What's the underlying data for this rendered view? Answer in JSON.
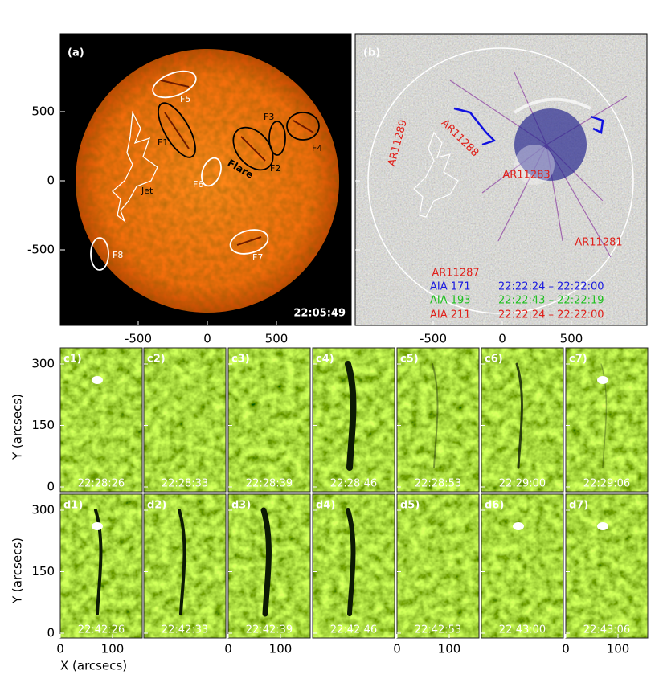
{
  "panel_a": {
    "label": "(a)",
    "time": "22:05:49",
    "features": [
      "F1",
      "F2",
      "F3",
      "F4",
      "F5",
      "F6",
      "F7",
      "F8"
    ],
    "flare": "Flare",
    "jet": "Jet"
  },
  "panel_b": {
    "label": "(b)",
    "regions": [
      "AR11289",
      "AR11288",
      "AR11283",
      "AR11281",
      "AR11287"
    ],
    "legend": [
      {
        "channel": "AIA 171",
        "times": "22:22:24 – 22:22:00"
      },
      {
        "channel": "AIA 193",
        "times": "22:22:43 – 22:22:19"
      },
      {
        "channel": "AIA 211",
        "times": "22:22:24 – 22:22:00"
      }
    ]
  },
  "top_axes": {
    "yticks": [
      500,
      0,
      -500
    ],
    "xticks": [
      -500,
      0,
      500
    ]
  },
  "rows": [
    {
      "labels": [
        "c1)",
        "c2)",
        "c3)",
        "c4)",
        "c5)",
        "c6)",
        "c7)"
      ],
      "times": [
        "22:28:26",
        "22:28:33",
        "22:28:39",
        "22:28:46",
        "22:28:53",
        "22:29:00",
        "22:29:06"
      ]
    },
    {
      "labels": [
        "d1)",
        "d2)",
        "d3)",
        "d4)",
        "d5)",
        "d6)",
        "d7)"
      ],
      "times": [
        "22:42:26",
        "22:42:33",
        "22:42:39",
        "22:42:46",
        "22:42:53",
        "22:43:00",
        "22:43:06"
      ]
    }
  ],
  "small_axes": {
    "y_label": "Y (arcsecs)",
    "x_label": "X (arcsecs)",
    "yticks": [
      0,
      150,
      300
    ],
    "xticks": [
      0,
      100
    ]
  }
}
